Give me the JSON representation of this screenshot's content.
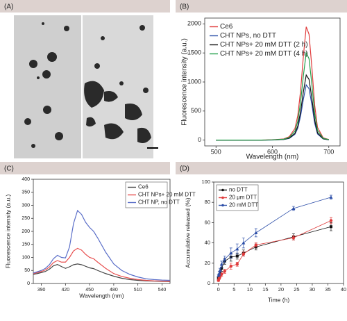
{
  "panels": [
    "(A)",
    "(B)",
    "(C)",
    "(D)"
  ],
  "chart_data": [
    {
      "type": "line",
      "x_label": "Wavelength (nm)",
      "y_label": "Fluorescence intensity (a.u.)",
      "x": [
        500,
        520,
        540,
        560,
        580,
        600,
        620,
        630,
        640,
        645,
        650,
        655,
        660,
        665,
        670,
        675,
        680,
        690,
        700
      ],
      "xlim": [
        480,
        720
      ],
      "xticks": [
        500,
        600,
        700
      ],
      "ylim": [
        -100,
        2100
      ],
      "yticks": [
        0,
        500,
        1000,
        1500,
        2000
      ],
      "legend": "upper left",
      "series": [
        {
          "name": "Ce6",
          "color": "#e03a3a",
          "values": [
            0,
            0,
            0,
            0,
            0,
            5,
            20,
            60,
            200,
            420,
            850,
            1450,
            1950,
            1820,
            1250,
            600,
            220,
            40,
            10
          ]
        },
        {
          "name": "CHT NPs, no DTT",
          "color": "#2c4ea8",
          "values": [
            0,
            0,
            0,
            0,
            0,
            2,
            10,
            30,
            100,
            205,
            415,
            705,
            950,
            885,
            610,
            290,
            105,
            20,
            5
          ]
        },
        {
          "name": "CHT NPs+ 20 mM DTT (2 h)",
          "color": "#111111",
          "values": [
            0,
            0,
            0,
            0,
            0,
            3,
            12,
            35,
            115,
            240,
            490,
            835,
            1120,
            1045,
            720,
            345,
            125,
            23,
            6
          ]
        },
        {
          "name": "CHT NPs+ 20 mM DTT (4 h)",
          "color": "#22a04a",
          "values": [
            0,
            0,
            0,
            0,
            0,
            4,
            15,
            45,
            155,
            325,
            655,
            1115,
            1500,
            1400,
            960,
            460,
            170,
            30,
            8
          ]
        }
      ]
    },
    {
      "type": "line",
      "x_label": "Wavelength (nm)",
      "y_label": "Fluorescence intensity (a.u.)",
      "x": [
        380,
        385,
        390,
        395,
        400,
        405,
        410,
        415,
        420,
        425,
        430,
        435,
        440,
        445,
        450,
        455,
        460,
        470,
        480,
        490,
        500,
        510,
        520,
        530,
        540,
        550
      ],
      "xlim": [
        380,
        550
      ],
      "xticks": [
        390,
        420,
        450,
        480,
        510,
        540
      ],
      "ylim": [
        0,
        400
      ],
      "yticks": [
        0,
        50,
        100,
        150,
        200,
        250,
        300,
        350,
        400
      ],
      "legend": "upper right",
      "series": [
        {
          "name": "Ce6",
          "color": "#444444",
          "values": [
            35,
            38,
            42,
            46,
            55,
            68,
            73,
            65,
            58,
            64,
            72,
            75,
            72,
            66,
            60,
            57,
            50,
            38,
            28,
            20,
            15,
            12,
            10,
            9,
            8,
            7
          ]
        },
        {
          "name": "CHT NPs+ 20 mM DTT",
          "color": "#e85050",
          "values": [
            38,
            42,
            46,
            52,
            63,
            80,
            88,
            82,
            82,
            100,
            125,
            135,
            128,
            112,
            100,
            95,
            82,
            58,
            38,
            27,
            20,
            15,
            12,
            10,
            9,
            8
          ]
        },
        {
          "name": "CHT NP, no DTT",
          "color": "#5a6ec8",
          "values": [
            40,
            45,
            50,
            58,
            72,
            95,
            108,
            100,
            98,
            140,
            230,
            280,
            265,
            235,
            215,
            200,
            175,
            120,
            75,
            50,
            35,
            25,
            18,
            15,
            13,
            12
          ]
        }
      ]
    },
    {
      "type": "line",
      "x_label": "Time (h)",
      "y_label": "Accumulative released (%)",
      "x": [
        0,
        0.25,
        0.5,
        1,
        2,
        4,
        6,
        8,
        12,
        24,
        36
      ],
      "xlim": [
        -1.5,
        40
      ],
      "xticks": [
        0,
        5,
        10,
        15,
        20,
        25,
        30,
        35,
        40
      ],
      "ylim": [
        0,
        100
      ],
      "yticks": [
        0,
        20,
        40,
        60,
        80,
        100
      ],
      "legend": "upper left",
      "series": [
        {
          "name": "no DTT",
          "color": "#111111",
          "marker": "square",
          "values": [
            5,
            8,
            10,
            15,
            22,
            26,
            27,
            30,
            36,
            46,
            56
          ],
          "errors": [
            1,
            1.5,
            2,
            3,
            3,
            4,
            3,
            3,
            3,
            3,
            4
          ]
        },
        {
          "name": "20 μm DTT",
          "color": "#e03a3a",
          "marker": "circle",
          "values": [
            3,
            5,
            7,
            9,
            12,
            17,
            19,
            29,
            38,
            45,
            62
          ],
          "errors": [
            1,
            1,
            1.5,
            2,
            2,
            3,
            2,
            2,
            2,
            2,
            3
          ]
        },
        {
          "name": "20 mM DTT",
          "color": "#2c4ea8",
          "marker": "triangle",
          "values": [
            8,
            10,
            13,
            19,
            24,
            30,
            34,
            40,
            50,
            74,
            85
          ],
          "errors": [
            1,
            2,
            2,
            3,
            3,
            5,
            5,
            5,
            4,
            2,
            2
          ]
        }
      ]
    }
  ]
}
